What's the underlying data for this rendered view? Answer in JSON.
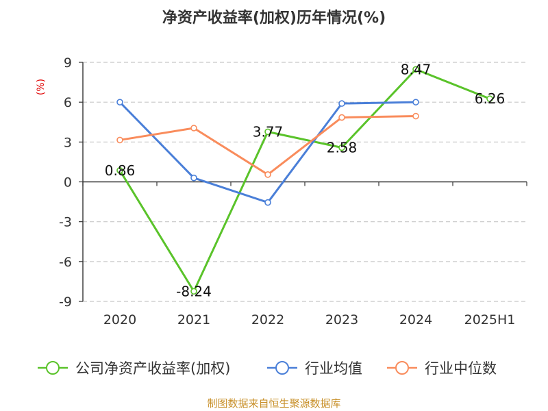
{
  "source_text": "制图数据来自恒生聚源数据库",
  "colors": {
    "series1": "#5ac32a",
    "series2": "#4a7fd8",
    "series3": "#f98c5c",
    "grid": "#c8c8c8",
    "axis": "#333333",
    "ylabel": "#e00000",
    "source": "#c8902a"
  },
  "chart_data": {
    "type": "line",
    "title": "净资产收益率(加权)历年情况(%)",
    "ylabel": "(%)",
    "xlabel": "",
    "categories": [
      "2020",
      "2021",
      "2022",
      "2023",
      "2024",
      "2025H1"
    ],
    "ylim": [
      -9,
      9
    ],
    "yticks": [
      9,
      6,
      3,
      0,
      -3,
      -6,
      -9
    ],
    "ytick_labels": [
      "9",
      "6",
      "3",
      "0",
      "-3",
      "-6",
      "-9"
    ],
    "grid": true,
    "legend_position": "bottom",
    "series": [
      {
        "name": "公司净资产收益率(加权)",
        "values": [
          0.86,
          -8.24,
          3.77,
          2.58,
          8.47,
          6.26
        ],
        "labels": [
          "0.86",
          "-8.24",
          "3.77",
          "2.58",
          "8.47",
          "6.26"
        ]
      },
      {
        "name": "行业均值",
        "values": [
          6.0,
          0.3,
          -1.55,
          5.9,
          6.0,
          null
        ]
      },
      {
        "name": "行业中位数",
        "values": [
          3.15,
          4.05,
          0.55,
          4.85,
          4.95,
          null
        ]
      }
    ]
  }
}
